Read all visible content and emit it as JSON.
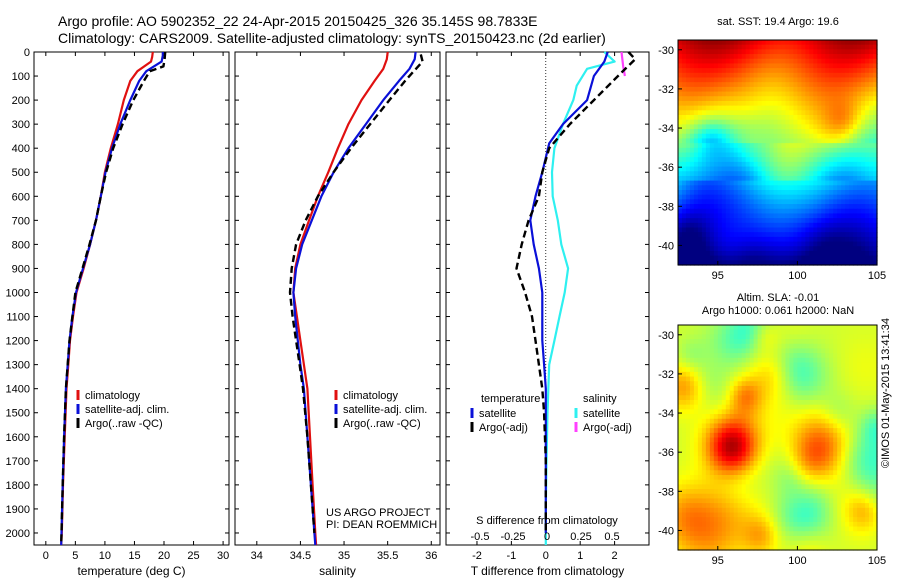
{
  "header": {
    "line1": "Argo profile: AO 5902352_22 24-Apr-2015 20150425_326 35.145S 98.7833E",
    "line2": "Climatology: CARS2009. Satellite-adjusted climatology: synTS_20150423.nc (2d earlier)"
  },
  "timestamp": "©IMOS 01-May-2015 13:41:34",
  "project_credit": [
    "US ARGO PROJECT",
    "PI: DEAN ROEMMICH"
  ],
  "colors": {
    "climatology": "#e01010",
    "satellite": "#0a10d8",
    "argo": "#000000",
    "s_satellite": "#2ef0f0",
    "s_argo": "#ff40ff"
  },
  "chart_data": [
    {
      "type": "line",
      "xlabel": "temperature (deg C)",
      "ylim": [
        0,
        2050
      ],
      "y_reversed": true,
      "xlim": [
        -2,
        31
      ],
      "x_ticks": [
        0,
        5,
        10,
        15,
        20,
        25,
        30
      ],
      "y_ticks": [
        0,
        100,
        200,
        300,
        400,
        500,
        600,
        700,
        800,
        900,
        1000,
        1100,
        1200,
        1300,
        1400,
        1500,
        1600,
        1700,
        1800,
        1900,
        2000
      ],
      "legend": [
        "climatology",
        "satellite-adj. clim.",
        "Argo(..raw -QC)"
      ],
      "series": [
        {
          "name": "climatology",
          "color": "#e01010",
          "points": [
            [
              18.1,
              0
            ],
            [
              18.0,
              20
            ],
            [
              17.8,
              40
            ],
            [
              15.5,
              80
            ],
            [
              14.3,
              120
            ],
            [
              13.2,
              200
            ],
            [
              12.2,
              300
            ],
            [
              11.0,
              400
            ],
            [
              10.0,
              500
            ],
            [
              9.3,
              600
            ],
            [
              8.5,
              700
            ],
            [
              7.5,
              800
            ],
            [
              6.4,
              900
            ],
            [
              5.2,
              1000
            ],
            [
              4.6,
              1100
            ],
            [
              4.1,
              1200
            ],
            [
              3.8,
              1300
            ],
            [
              3.5,
              1400
            ],
            [
              3.2,
              1600
            ],
            [
              2.9,
              1800
            ],
            [
              2.7,
              2000
            ],
            [
              2.6,
              2050
            ]
          ]
        },
        {
          "name": "satellite-adj. clim.",
          "color": "#0a10d8",
          "points": [
            [
              19.8,
              0
            ],
            [
              19.8,
              15
            ],
            [
              19.6,
              40
            ],
            [
              17.0,
              80
            ],
            [
              15.8,
              120
            ],
            [
              14.3,
              200
            ],
            [
              12.6,
              300
            ],
            [
              11.2,
              400
            ],
            [
              10.1,
              500
            ],
            [
              9.3,
              600
            ],
            [
              8.5,
              700
            ],
            [
              7.5,
              800
            ],
            [
              6.3,
              900
            ],
            [
              5.1,
              1000
            ],
            [
              4.5,
              1100
            ],
            [
              4.0,
              1200
            ],
            [
              3.7,
              1300
            ],
            [
              3.4,
              1400
            ],
            [
              3.1,
              1600
            ],
            [
              2.85,
              1800
            ],
            [
              2.65,
              2000
            ],
            [
              2.6,
              2050
            ]
          ]
        },
        {
          "name": "Argo(..raw -QC)",
          "color": "#000000",
          "points": [
            [
              20.2,
              0
            ],
            [
              20.1,
              30
            ],
            [
              19.9,
              60
            ],
            [
              17.6,
              80
            ],
            [
              16.6,
              120
            ],
            [
              14.8,
              200
            ],
            [
              13.0,
              300
            ],
            [
              11.4,
              400
            ],
            [
              10.2,
              500
            ],
            [
              9.3,
              600
            ],
            [
              8.5,
              700
            ],
            [
              7.4,
              800
            ],
            [
              6.2,
              900
            ],
            [
              5.0,
              1000
            ],
            [
              4.5,
              1100
            ],
            [
              4.0,
              1200
            ],
            [
              3.7,
              1300
            ],
            [
              3.4,
              1400
            ],
            [
              3.1,
              1600
            ],
            [
              2.85,
              1800
            ],
            [
              2.65,
              2000
            ],
            [
              2.6,
              2050
            ]
          ]
        }
      ]
    },
    {
      "type": "line",
      "xlabel": "salinity",
      "ylim": [
        0,
        2050
      ],
      "y_reversed": true,
      "xlim": [
        33.75,
        36.1
      ],
      "x_ticks": [
        34,
        34.5,
        35,
        35.5,
        36
      ],
      "x_tick_labels": [
        "34",
        "34.5",
        "35",
        "35.5",
        "36"
      ],
      "legend": [
        "climatology",
        "satellite-adj. clim.",
        "Argo(..raw -QC)"
      ],
      "series": [
        {
          "name": "climatology",
          "color": "#e01010",
          "points": [
            [
              35.5,
              0
            ],
            [
              35.49,
              30
            ],
            [
              35.45,
              70
            ],
            [
              35.35,
              120
            ],
            [
              35.2,
              200
            ],
            [
              35.05,
              300
            ],
            [
              34.93,
              400
            ],
            [
              34.82,
              500
            ],
            [
              34.7,
              600
            ],
            [
              34.6,
              700
            ],
            [
              34.5,
              800
            ],
            [
              34.44,
              900
            ],
            [
              34.42,
              1000
            ],
            [
              34.46,
              1100
            ],
            [
              34.5,
              1200
            ],
            [
              34.54,
              1300
            ],
            [
              34.58,
              1400
            ],
            [
              34.61,
              1600
            ],
            [
              34.64,
              1800
            ],
            [
              34.67,
              2000
            ],
            [
              34.68,
              2050
            ]
          ]
        },
        {
          "name": "satellite-adj. clim.",
          "color": "#0a10d8",
          "points": [
            [
              35.82,
              0
            ],
            [
              35.81,
              30
            ],
            [
              35.75,
              70
            ],
            [
              35.63,
              120
            ],
            [
              35.45,
              200
            ],
            [
              35.25,
              300
            ],
            [
              35.05,
              400
            ],
            [
              34.88,
              500
            ],
            [
              34.74,
              600
            ],
            [
              34.63,
              700
            ],
            [
              34.52,
              800
            ],
            [
              34.45,
              900
            ],
            [
              34.42,
              1000
            ],
            [
              34.44,
              1100
            ],
            [
              34.47,
              1200
            ],
            [
              34.5,
              1300
            ],
            [
              34.54,
              1400
            ],
            [
              34.58,
              1600
            ],
            [
              34.62,
              1800
            ],
            [
              34.66,
              2000
            ],
            [
              34.67,
              2050
            ]
          ]
        },
        {
          "name": "Argo(..raw -QC)",
          "color": "#000000",
          "points": [
            [
              35.88,
              10
            ],
            [
              35.9,
              40
            ],
            [
              35.8,
              80
            ],
            [
              35.7,
              120
            ],
            [
              35.52,
              200
            ],
            [
              35.3,
              300
            ],
            [
              35.08,
              400
            ],
            [
              34.88,
              500
            ],
            [
              34.7,
              600
            ],
            [
              34.56,
              700
            ],
            [
              34.45,
              800
            ],
            [
              34.4,
              900
            ],
            [
              34.38,
              1000
            ],
            [
              34.41,
              1100
            ],
            [
              34.45,
              1200
            ],
            [
              34.49,
              1300
            ],
            [
              34.53,
              1400
            ],
            [
              34.58,
              1600
            ],
            [
              34.62,
              1800
            ],
            [
              34.66,
              2000
            ]
          ]
        }
      ]
    },
    {
      "type": "line",
      "xlabel": "T difference from climatology",
      "xlabel_top": "S difference from climatology",
      "ylim": [
        0,
        2050
      ],
      "y_reversed": true,
      "xlim": [
        -2.9,
        3.0
      ],
      "x_ticks": [
        -2,
        -1,
        0,
        1,
        2
      ],
      "x_tick_labels": [
        "-2",
        "-1",
        "0",
        "1",
        "2"
      ],
      "s_ticks": [
        "-0.5",
        "-0.25",
        "0",
        "0.25",
        "0.5"
      ],
      "legend_left": {
        "title": "temperature",
        "items": [
          "satellite",
          "Argo(-adj)"
        ]
      },
      "legend_right": {
        "title": "salinity",
        "items": [
          "satellite",
          "Argo(-adj)"
        ]
      },
      "series": [
        {
          "name": "satellite",
          "color": "#2ef0f0",
          "points": [
            [
              1.7,
              0
            ],
            [
              2.0,
              40
            ],
            [
              1.2,
              70
            ],
            [
              0.9,
              140
            ],
            [
              0.8,
              200
            ],
            [
              0.5,
              300
            ],
            [
              0.25,
              400
            ],
            [
              0.18,
              500
            ],
            [
              0.2,
              600
            ],
            [
              0.35,
              700
            ],
            [
              0.45,
              800
            ],
            [
              0.65,
              900
            ],
            [
              0.55,
              1000
            ],
            [
              0.4,
              1100
            ],
            [
              0.25,
              1200
            ],
            [
              0.1,
              1300
            ],
            [
              0.05,
              1500
            ],
            [
              0.02,
              1700
            ],
            [
              0.0,
              1900
            ],
            [
              0.0,
              2050
            ]
          ]
        },
        {
          "name": "Argo(-adj)",
          "color": "#ff40ff",
          "points": [
            [
              2.2,
              0
            ],
            [
              2.25,
              60
            ],
            [
              2.3,
              100
            ]
          ]
        },
        {
          "name": "satellite",
          "color": "#0a10d8",
          "points": [
            [
              1.8,
              0
            ],
            [
              1.7,
              40
            ],
            [
              1.4,
              100
            ],
            [
              1.2,
              200
            ],
            [
              0.5,
              300
            ],
            [
              0.1,
              380
            ],
            [
              -0.1,
              500
            ],
            [
              -0.3,
              600
            ],
            [
              -0.45,
              700
            ],
            [
              -0.35,
              800
            ],
            [
              -0.2,
              900
            ],
            [
              -0.1,
              1000
            ],
            [
              -0.1,
              1100
            ],
            [
              -0.1,
              1200
            ],
            [
              -0.05,
              1300
            ],
            [
              0.0,
              1400
            ],
            [
              0.0,
              1600
            ],
            [
              0.0,
              1800
            ],
            [
              0.0,
              2000
            ]
          ]
        },
        {
          "name": "Argo(-adj)",
          "color": "#000000",
          "points": [
            [
              2.4,
              0
            ],
            [
              2.6,
              30
            ],
            [
              2.1,
              100
            ],
            [
              1.4,
              200
            ],
            [
              0.7,
              300
            ],
            [
              0.1,
              400
            ],
            [
              -0.1,
              500
            ],
            [
              -0.2,
              600
            ],
            [
              -0.5,
              700
            ],
            [
              -0.7,
              800
            ],
            [
              -0.85,
              900
            ],
            [
              -0.6,
              1000
            ],
            [
              -0.4,
              1100
            ],
            [
              -0.3,
              1200
            ],
            [
              -0.2,
              1300
            ],
            [
              -0.1,
              1400
            ],
            [
              -0.05,
              1500
            ],
            [
              0.0,
              1700
            ],
            [
              0.0,
              2000
            ]
          ]
        }
      ]
    },
    {
      "type": "heatmap",
      "title": "sat. SST: 19.4  Argo: 19.6",
      "xlim": [
        92.5,
        105
      ],
      "ylim": [
        -41,
        -29.5
      ],
      "x_ticks": [
        95,
        100,
        105
      ],
      "y_ticks": [
        -30,
        -32,
        -34,
        -36,
        -38,
        -40
      ],
      "marker": {
        "lon": 98.7833,
        "lat": -35.145
      }
    },
    {
      "type": "heatmap",
      "title_lines": [
        "Altim. SLA: -0.01",
        "Argo h1000: 0.061  h2000: NaN"
      ],
      "xlim": [
        92.5,
        105
      ],
      "ylim": [
        -41,
        -29.5
      ],
      "x_ticks": [
        95,
        100,
        105
      ],
      "y_ticks": [
        -30,
        -32,
        -34,
        -36,
        -38,
        -40
      ]
    }
  ]
}
